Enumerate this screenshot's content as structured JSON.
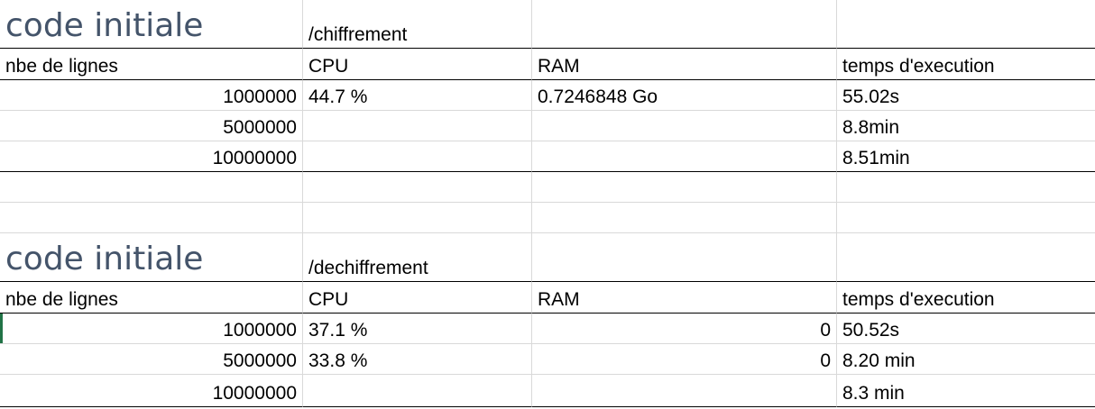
{
  "sections": [
    {
      "title": "code initiale",
      "operation": "/chiffrement",
      "headers": [
        "nbe de lignes",
        "CPU",
        "RAM",
        "temps d'execution"
      ],
      "rows": [
        {
          "lines": "1000000",
          "cpu": "44.7 %",
          "ram": "0.7246848 Go",
          "time": "55.02s"
        },
        {
          "lines": "5000000",
          "cpu": "",
          "ram": "",
          "time": "8.8min"
        },
        {
          "lines": "10000000",
          "cpu": "",
          "ram": "",
          "time": "8.51min"
        }
      ]
    },
    {
      "title": "code initiale",
      "operation": "/dechiffrement",
      "headers": [
        "nbe de lignes",
        "CPU",
        "RAM",
        "temps d'execution"
      ],
      "rows": [
        {
          "lines": "1000000",
          "cpu": "37.1 %",
          "ram": "0",
          "time": "50.52s"
        },
        {
          "lines": "5000000",
          "cpu": "33.8 %",
          "ram": "0",
          "time": "8.20 min"
        },
        {
          "lines": "10000000",
          "cpu": "",
          "ram": "",
          "time": "8.3 min"
        }
      ]
    }
  ],
  "colors": {
    "title": "#44546a",
    "gridline": "#d9d9d9",
    "selection": "#217346"
  }
}
